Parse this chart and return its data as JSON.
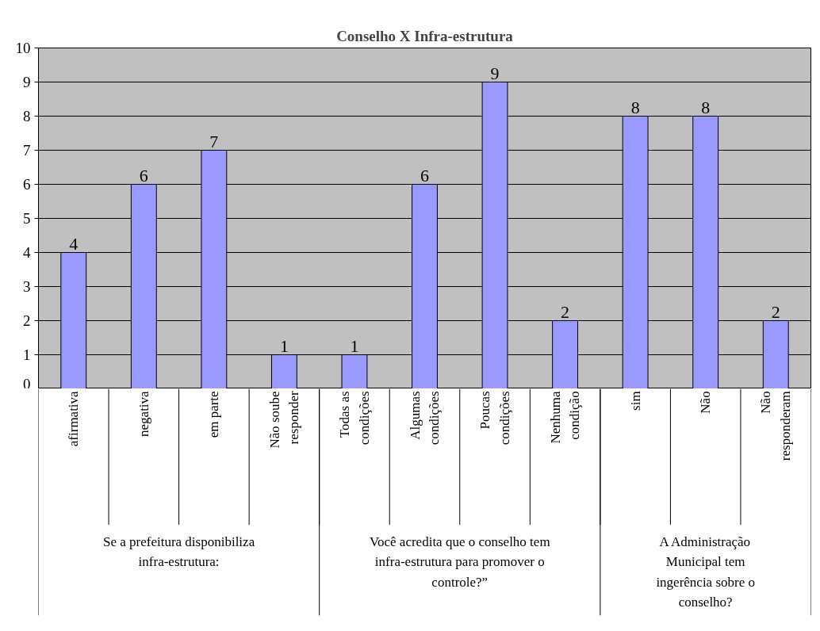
{
  "chart_data": {
    "type": "bar",
    "title": "Conselho X Infra-estrutura",
    "categories": [
      "afirmativa",
      "negativa",
      "em parte",
      "Não soube responder",
      "Todas as condições",
      "Algumas condições",
      "Poucas condições",
      "Nenhuma condição",
      "sim",
      "Não",
      "Não responderam"
    ],
    "values": [
      4,
      6,
      7,
      1,
      1,
      6,
      9,
      2,
      8,
      8,
      2
    ],
    "color": "#9999ff",
    "ylim": [
      0,
      10
    ],
    "yticks": [
      0,
      1,
      2,
      3,
      4,
      5,
      6,
      7,
      8,
      9,
      10
    ],
    "grid": "y",
    "data_labels": true,
    "annotations": [
      "Se a prefeitura disponibiliza infra-estrutura:",
      "Você acredita que o conselho tem infra-estrutura para promover o controle?”",
      "A Administração Municipal tem ingerência sobre o conselho?"
    ]
  }
}
